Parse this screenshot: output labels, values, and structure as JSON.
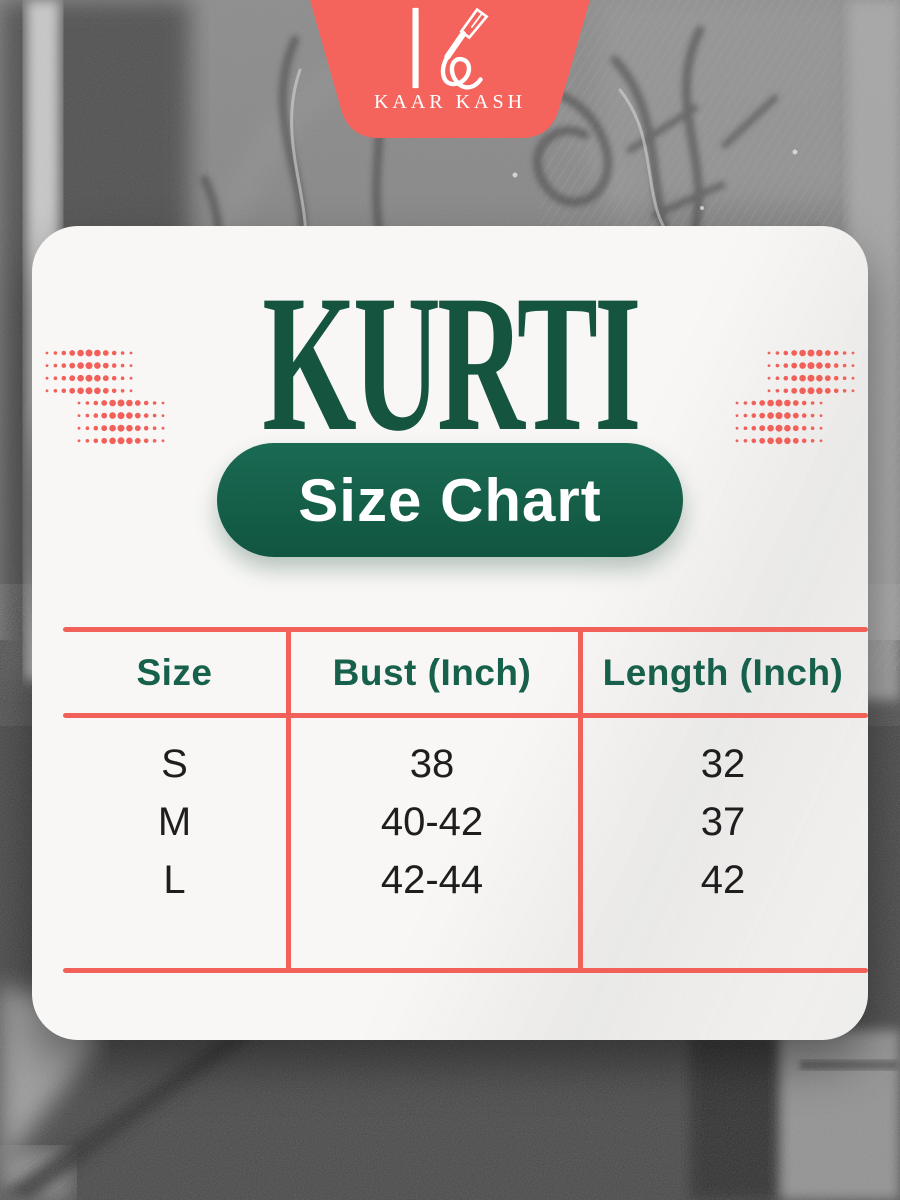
{
  "theme": {
    "accent_coral": "#F4645D",
    "accent_red": "#F2605A",
    "green_title": "#155540",
    "green_pill": "#136049",
    "green_header": "#17604B",
    "card_bg": "#F8F7F5",
    "text_dark": "#1E1E1E",
    "white": "#FFFFFF"
  },
  "brand": {
    "name": "KAAR KASH",
    "monogram_icon": "k-pen-monogram"
  },
  "page": {
    "title": "KURTI",
    "badge_label": "Size Chart"
  },
  "chart_data": {
    "type": "table",
    "title": "KURTI Size Chart",
    "columns": [
      "Size",
      "Bust (Inch)",
      "Length (Inch)"
    ],
    "rows": [
      [
        "S",
        "38",
        "32"
      ],
      [
        "M",
        "40-42",
        "37"
      ],
      [
        "L",
        "42-44",
        "42"
      ]
    ]
  }
}
